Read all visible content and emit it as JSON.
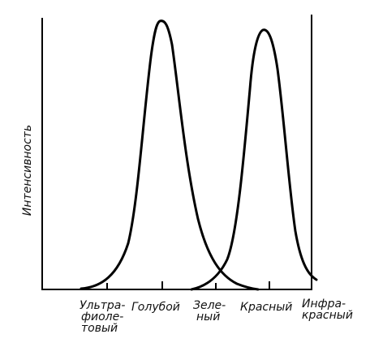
{
  "axes": {
    "ylabel": "Интенсивность"
  },
  "x_labels": [
    {
      "lines": [
        "Ультра-",
        "фиоле-",
        "товый"
      ]
    },
    {
      "lines": [
        "Голубой"
      ]
    },
    {
      "lines": [
        "Зеле-",
        "ный"
      ]
    },
    {
      "lines": [
        "Красный"
      ]
    },
    {
      "lines": [
        "Инфра-",
        "красный"
      ]
    }
  ],
  "curves": [
    {
      "peak_band": "Голубой"
    },
    {
      "peak_band": "Красный"
    }
  ]
}
